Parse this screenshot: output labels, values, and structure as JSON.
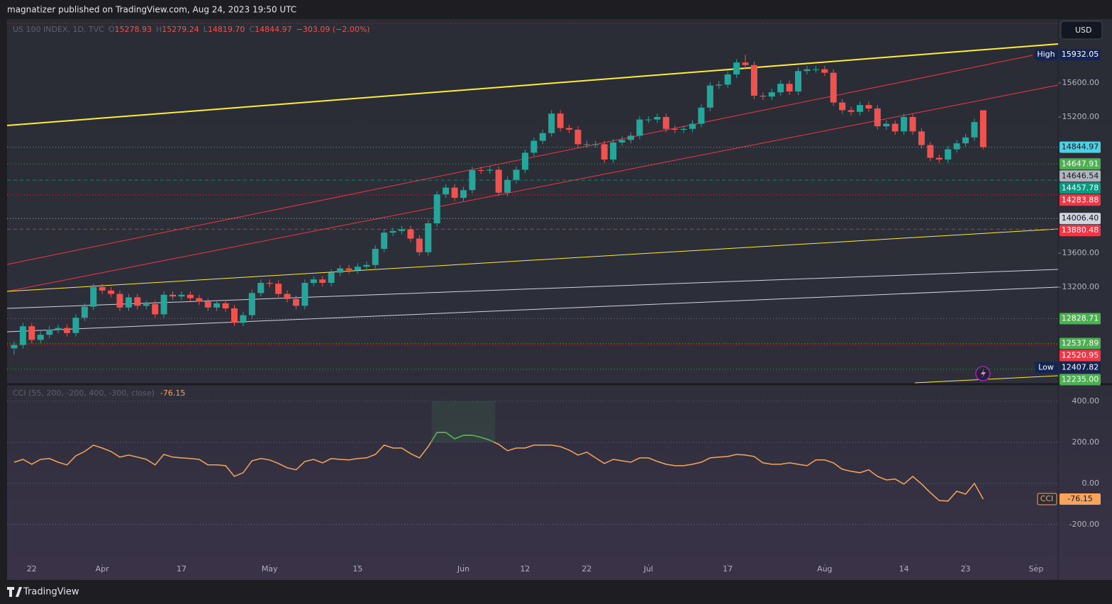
{
  "header": {
    "text": "magnatizer published on TradingView.com, Aug 24, 2023 19:50 UTC"
  },
  "footer": {
    "logo": "TradingView"
  },
  "chart_data": [
    {
      "type": "candlestick",
      "symbol": "US 100 INDEX, 1D, TVC",
      "ohlc_legend": [
        {
          "label": "O",
          "value": 15278.93
        },
        {
          "label": "H",
          "value": 15279.24
        },
        {
          "label": "L",
          "value": 14819.7,
          "value_label": "14819.70"
        },
        {
          "label": "C",
          "value": 14844.97
        }
      ],
      "change": "−303.09 (−2.00%)",
      "currency": "USD",
      "up_color": "#26a69a",
      "down_color": "#ef5350",
      "open": [
        12480,
        12520,
        12740,
        12580,
        12640,
        12700,
        12720,
        12660,
        12840,
        12970,
        13200,
        13160,
        13120,
        12960,
        13080,
        12980,
        13000,
        12880,
        13110,
        13090,
        13110,
        13070,
        13030,
        12960,
        13010,
        12950,
        12780,
        12870,
        13130,
        13250,
        13240,
        13120,
        13060,
        12980,
        13250,
        13290,
        13250,
        13370,
        13420,
        13400,
        13440,
        13460,
        13650,
        13840,
        13860,
        13880,
        13770,
        13610,
        13950,
        14290,
        14370,
        14250,
        14340,
        14575,
        14570,
        14580,
        14310,
        14460,
        14580,
        14780,
        14920,
        15010,
        15240,
        15070,
        15050,
        14880,
        14880,
        14880,
        14700,
        14900,
        14930,
        14980,
        15170,
        15170,
        15200,
        15060,
        15050,
        15060,
        15120,
        15310,
        15570,
        15580,
        15700,
        15840,
        15810,
        15450,
        15440,
        15490,
        15590,
        15500,
        15740,
        15760,
        15760,
        15720,
        15370,
        15280,
        15260,
        15340,
        15300,
        15090,
        15120,
        15030,
        15200,
        15030,
        14870,
        14720,
        14700,
        14820,
        14890,
        14960,
        15278.93
      ],
      "high": [
        12560,
        12780,
        12780,
        12680,
        12740,
        12760,
        12760,
        12880,
        13010,
        13240,
        13240,
        13200,
        13160,
        13120,
        13120,
        13040,
        13040,
        13150,
        13150,
        13150,
        13150,
        13110,
        13070,
        13050,
        13050,
        12990,
        12910,
        13170,
        13290,
        13290,
        13280,
        13160,
        13100,
        13290,
        13330,
        13330,
        13410,
        13460,
        13460,
        13480,
        13500,
        13690,
        13880,
        13900,
        13920,
        13920,
        13810,
        13990,
        14330,
        14410,
        14410,
        14380,
        14615,
        14615,
        14620,
        14620,
        14500,
        14620,
        14820,
        14960,
        15050,
        15280,
        15280,
        15110,
        15090,
        14920,
        14920,
        14920,
        14940,
        14970,
        15020,
        15210,
        15210,
        15240,
        15240,
        15100,
        15100,
        15160,
        15350,
        15610,
        15620,
        15740,
        15880,
        15932.05,
        15850,
        15490,
        15530,
        15630,
        15630,
        15780,
        15800,
        15800,
        15800,
        15760,
        15410,
        15320,
        15380,
        15380,
        15340,
        15160,
        15160,
        15240,
        15240,
        15070,
        14910,
        14760,
        14860,
        14930,
        15000,
        15180,
        15279.24
      ],
      "low": [
        12407.82,
        12480,
        12540,
        12540,
        12600,
        12660,
        12620,
        12620,
        12800,
        12930,
        13120,
        13080,
        12920,
        12920,
        12940,
        12940,
        12840,
        12840,
        13050,
        13050,
        13030,
        12990,
        12920,
        12920,
        12910,
        12740,
        12740,
        12830,
        13090,
        13200,
        13080,
        13020,
        12940,
        12940,
        13210,
        13210,
        13210,
        13330,
        13360,
        13360,
        13400,
        13420,
        13610,
        13800,
        13820,
        13730,
        13570,
        13570,
        13910,
        14250,
        14210,
        14210,
        14300,
        14530,
        14530,
        14270,
        14270,
        14420,
        14540,
        14740,
        14880,
        14970,
        15030,
        15010,
        14840,
        14840,
        14840,
        14660,
        14660,
        14860,
        14890,
        14940,
        15130,
        15130,
        15020,
        15010,
        15010,
        15020,
        15080,
        15270,
        15530,
        15540,
        15660,
        15770,
        15410,
        15400,
        15400,
        15450,
        15460,
        15460,
        15700,
        15720,
        15680,
        15330,
        15240,
        15220,
        15220,
        15260,
        15050,
        15050,
        14990,
        14990,
        14990,
        14830,
        14680,
        14660,
        14660,
        14780,
        14850,
        14920,
        14819.7
      ],
      "close": [
        12520,
        12740,
        12580,
        12640,
        12700,
        12720,
        12660,
        12840,
        12970,
        13200,
        13160,
        13120,
        12960,
        13080,
        12980,
        13000,
        12880,
        13110,
        13090,
        13110,
        13070,
        13030,
        12960,
        13010,
        12950,
        12780,
        12870,
        13130,
        13250,
        13240,
        13120,
        13060,
        12980,
        13250,
        13290,
        13250,
        13370,
        13420,
        13400,
        13440,
        13460,
        13650,
        13840,
        13860,
        13880,
        13770,
        13610,
        13950,
        14290,
        14370,
        14250,
        14340,
        14575,
        14570,
        14580,
        14310,
        14460,
        14580,
        14780,
        14920,
        15010,
        15240,
        15070,
        15050,
        14880,
        14880,
        14880,
        14700,
        14900,
        14930,
        14980,
        15170,
        15170,
        15200,
        15060,
        15050,
        15060,
        15120,
        15310,
        15570,
        15580,
        15700,
        15840,
        15810,
        15450,
        15440,
        15490,
        15590,
        15500,
        15740,
        15760,
        15760,
        15720,
        15370,
        15280,
        15260,
        15340,
        15300,
        15090,
        15120,
        15030,
        15200,
        15030,
        14870,
        14720,
        14700,
        14820,
        14890,
        14960,
        15140,
        14844.97
      ],
      "xlim": [
        -0.8,
        118.5
      ],
      "ylim": [
        12075,
        16350
      ],
      "yticks": [
        {
          "value": 15600,
          "label": "15600.00"
        },
        {
          "value": 15200,
          "label": "15200.00"
        },
        {
          "value": 13600,
          "label": "13600.00"
        },
        {
          "value": 13200,
          "label": "13200.00"
        }
      ],
      "price_labels": [
        {
          "value": 15932.05,
          "tag": "High",
          "color": "#152553"
        },
        {
          "value": 14844.97,
          "color": "#4dd0e1",
          "line": "dotted"
        },
        {
          "value": 14647.91,
          "color": "#4caf50",
          "line": "dotted"
        },
        {
          "value": 14646.54,
          "color": "#b2b5be"
        },
        {
          "value": 14457.78,
          "color": "#089981",
          "line": "dashed"
        },
        {
          "value": 14283.88,
          "color": "#f23645",
          "line": "dotted"
        },
        {
          "value": 14006.4,
          "value_label": "14006.40",
          "color": "#d1d4dc",
          "line": "dotted"
        },
        {
          "value": 13880.48,
          "color": "#f23645",
          "line": "dashed"
        },
        {
          "value": 12828.71,
          "color": "#4caf50",
          "line": "dotted"
        },
        {
          "value": 12537.89,
          "color": "#4caf50",
          "line": "dotted"
        },
        {
          "value": 12520.95,
          "color": "#f23645",
          "line": "dotted"
        },
        {
          "value": 12407.82,
          "tag": "Low",
          "color": "#152553"
        },
        {
          "value": 12235,
          "value_label": "12235.00",
          "color": "#4caf50",
          "line": "dotted"
        }
      ]
    },
    {
      "type": "line",
      "title": "CCI (55, 200, -200, 400, -300, close)",
      "badge": "CCI",
      "color": "#f7a55c",
      "highlight_color": "#4caf50",
      "values": [
        103,
        117,
        93,
        117,
        121,
        103,
        90,
        134,
        155,
        186,
        172,
        155,
        128,
        138,
        128,
        117,
        90,
        141,
        128,
        124,
        121,
        117,
        90,
        90,
        86,
        34,
        52,
        110,
        121,
        114,
        97,
        76,
        66,
        107,
        117,
        100,
        121,
        117,
        114,
        121,
        124,
        141,
        186,
        172,
        172,
        145,
        124,
        179,
        248,
        248,
        217,
        234,
        234,
        224,
        210,
        190,
        159,
        172,
        172,
        186,
        186,
        186,
        179,
        162,
        138,
        152,
        124,
        97,
        117,
        110,
        103,
        124,
        124,
        107,
        93,
        86,
        86,
        93,
        103,
        124,
        128,
        131,
        141,
        138,
        131,
        100,
        93,
        93,
        100,
        93,
        86,
        114,
        114,
        100,
        69,
        59,
        52,
        66,
        34,
        17,
        21,
        -3,
        34,
        -3,
        -45,
        -83,
        -86,
        -38,
        -52,
        0,
        -76.15
      ],
      "xlim": [
        -0.8,
        118.5
      ],
      "ylim": [
        -390,
        472
      ],
      "grid": true,
      "yticks": [
        {
          "value": 400,
          "label": "400.00"
        },
        {
          "value": 200,
          "label": "200.00"
        },
        {
          "value": 0,
          "label": "0.00"
        },
        {
          "value": -200,
          "label": "-200.00"
        }
      ],
      "xticks": [
        {
          "value": 2,
          "label": "22"
        },
        {
          "value": 10,
          "label": "Apr"
        },
        {
          "value": 19,
          "label": "17"
        },
        {
          "value": 29,
          "label": "May"
        },
        {
          "value": 39,
          "label": "15"
        },
        {
          "value": 51,
          "label": "Jun"
        },
        {
          "value": 58,
          "label": "12"
        },
        {
          "value": 65,
          "label": "22"
        },
        {
          "value": 72,
          "label": "Jul"
        },
        {
          "value": 81,
          "label": "17"
        },
        {
          "value": 92,
          "label": "Aug"
        },
        {
          "value": 101,
          "label": "14"
        },
        {
          "value": 108,
          "label": "23"
        },
        {
          "value": 116,
          "label": "Sep"
        }
      ]
    }
  ]
}
